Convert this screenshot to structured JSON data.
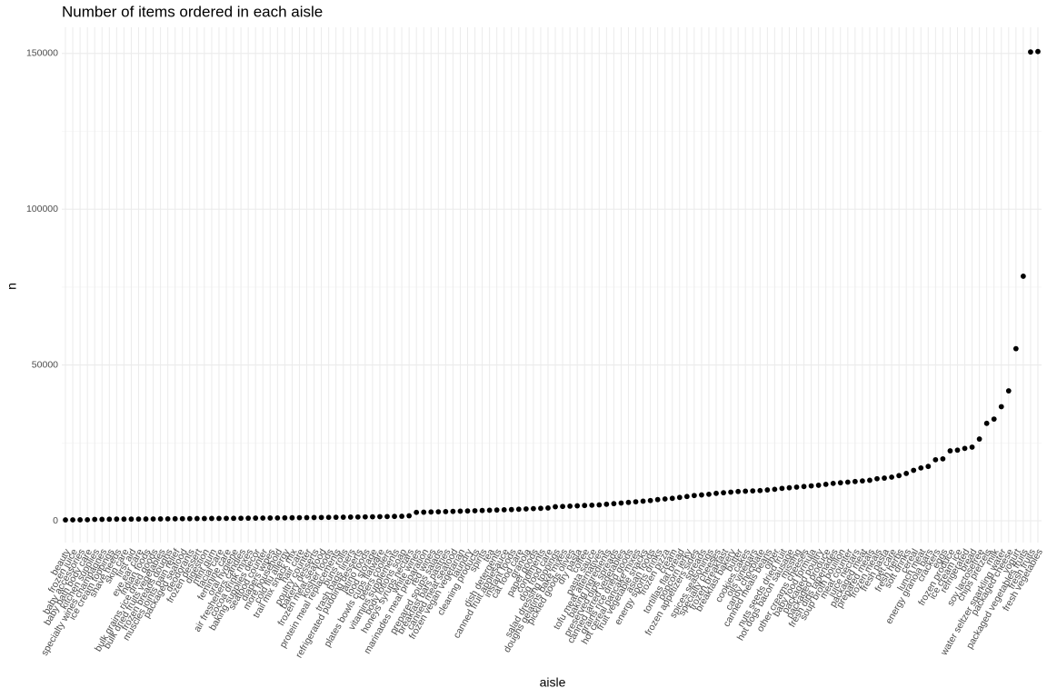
{
  "chart_data": {
    "type": "scatter",
    "title": "Number of items ordered in each aisle",
    "x_label": "aisle",
    "y_label": "n",
    "categories": [
      "beauty",
      "frozen juice",
      "baby accessories",
      "baby bath body care",
      "kitchen supplies",
      "specialty wines champagnes",
      "ice cream toppings",
      "shave needs",
      "skin care",
      "first aid",
      "eye ear care",
      "indian foods",
      "bulk grains rice dried goods",
      "bulk dried fruits vegetables",
      "frozen breads doughs",
      "muscles joints pain relief",
      "packaged seafood",
      "deodorants",
      "frozen dessert",
      "digestion",
      "mint gum",
      "facial care",
      "feminine care",
      "oral hygiene",
      "air fresheners candles",
      "cocoa drink mixes",
      "baking supplies decor",
      "seafood counter",
      "diapers wipes",
      "more household",
      "cold flu allergy",
      "trail mix snack mix",
      "hair care",
      "poultry counter",
      "bakery desserts",
      "frozen meat seafood",
      "kosher foods",
      "protein meal replacements",
      "buns rolls",
      "trash bags liners",
      "refrigerated pudding desserts",
      "latino foods",
      "food storage",
      "plates bowls cups flatware",
      "beers coolers",
      "vitamins supplements",
      "body lotions soap",
      "honeys syrups nectars",
      "white wines",
      "marinades meat preparation",
      "red wines",
      "prepared soups salads",
      "breakfast bars pastries",
      "canned meat seafood",
      "frozen vegan vegetarian",
      "laundry",
      "cleaning products",
      "spirits",
      "tea",
      "dish detergents",
      "canned fruit applesauce",
      "instant foods",
      "cat food care",
      "granola",
      "paper goods",
      "condiments",
      "dog food care",
      "salad dressing toppings",
      "doughs gelatins bake mixes",
      "pickled goods olives",
      "dry pasta",
      "coffee",
      "pasta sauce",
      "tofu meat alternatives",
      "baking ingredients",
      "preserved dips spreads",
      "canned jarred vegetables",
      "grains rice dried goods",
      "hot cereal pancake mixes",
      "fruit vegetable snacks",
      "asian foods",
      "energy sports drinks",
      "frozen pizza",
      "cream",
      "tortillas flat bread",
      "popcorn jerky",
      "frozen appetizers sides",
      "spreads",
      "spices seasonings",
      "specialty cheeses",
      "frozen breakfast",
      "breakfast bakery",
      "butter",
      "cookies cakes",
      "oils vinegars",
      "candy chocolate",
      "canned meals beans",
      "other",
      "nuts seeds dried fruit",
      "hot dogs bacon sausage",
      "missing",
      "other creams cheeses",
      "baby food formula",
      "packaged poultry",
      "packaged produce",
      "fresh dips tapenades",
      "soup broth bouillon",
      "meat counter",
      "juice nectars",
      "packaged meat",
      "prepared meals",
      "frozen meals",
      "fresh pasta",
      "pet care",
      "fresh herbs",
      "soft drinks",
      "cereal",
      "lunch meat",
      "energy granola bars",
      "crackers",
      "eggs",
      "frozen produce",
      "ice cream ice",
      "refrigerated",
      "bread",
      "soy lactosefree",
      "chips pretzels",
      "milk",
      "water seltzer sparkling water",
      "packaged cheese",
      "yogurt",
      "packaged vegetables fruits",
      "fresh fruits",
      "fresh vegetables"
    ],
    "values": [
      287,
      294,
      306,
      328,
      448,
      461,
      504,
      532,
      534,
      539,
      547,
      561,
      587,
      602,
      623,
      636,
      666,
      682,
      706,
      721,
      744,
      758,
      776,
      796,
      812,
      830,
      851,
      874,
      892,
      915,
      941,
      967,
      991,
      1015,
      1042,
      1068,
      1096,
      1125,
      1152,
      1180,
      1210,
      1245,
      1280,
      1320,
      1360,
      1400,
      1450,
      1600,
      2700,
      2760,
      2820,
      2880,
      2950,
      3010,
      3080,
      3150,
      3220,
      3300,
      3380,
      3450,
      3530,
      3600,
      3700,
      3800,
      3900,
      4000,
      4100,
      4500,
      4600,
      4700,
      4800,
      4900,
      5000,
      5100,
      5300,
      5500,
      5700,
      5900,
      6100,
      6300,
      6500,
      6800,
      7000,
      7200,
      7500,
      7800,
      8100,
      8300,
      8500,
      8800,
      9000,
      9200,
      9400,
      9500,
      9600,
      9700,
      9900,
      10100,
      10400,
      10600,
      10800,
      11000,
      11200,
      11400,
      11700,
      12000,
      12200,
      12400,
      12600,
      12800,
      13000,
      13500,
      13700,
      14000,
      14500,
      15200,
      16201,
      16957,
      17449,
      19592,
      19875,
      22453,
      22676,
      23228,
      23635,
      26240,
      31269,
      32644,
      36617,
      41699,
      55240,
      78493,
      150473,
      150609
    ],
    "color": "#000000",
    "ylim": [
      -7000,
      158400
    ],
    "yticks": [
      0,
      50000,
      100000,
      150000
    ],
    "grid": true
  }
}
